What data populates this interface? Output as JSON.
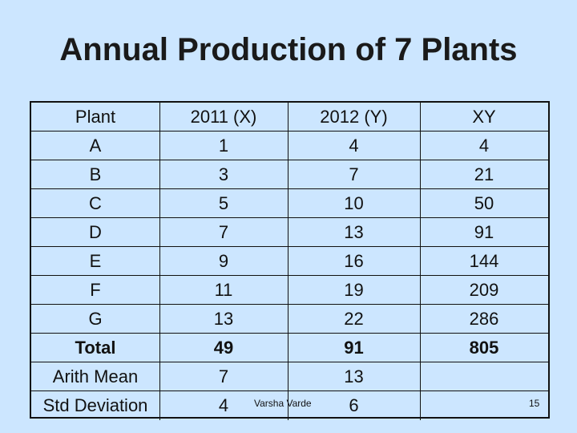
{
  "title": "Annual Production of 7 Plants",
  "table": {
    "headers": [
      "Plant",
      "2011 (X)",
      "2012 (Y)",
      "XY"
    ],
    "rows": [
      [
        "A",
        "1",
        "4",
        "4"
      ],
      [
        "B",
        "3",
        "7",
        "21"
      ],
      [
        "C",
        "5",
        "10",
        "50"
      ],
      [
        "D",
        "7",
        "13",
        "91"
      ],
      [
        "E",
        "9",
        "16",
        "144"
      ],
      [
        "F",
        "11",
        "19",
        "209"
      ],
      [
        "G",
        "13",
        "22",
        "286"
      ]
    ],
    "total": [
      "Total",
      "49",
      "91",
      "805"
    ],
    "mean": [
      "Arith Mean",
      "7",
      "13",
      ""
    ],
    "std": [
      "Std Deviation",
      "4",
      "6",
      ""
    ]
  },
  "footer": {
    "author": "Varsha Varde",
    "slide_number": "15"
  }
}
